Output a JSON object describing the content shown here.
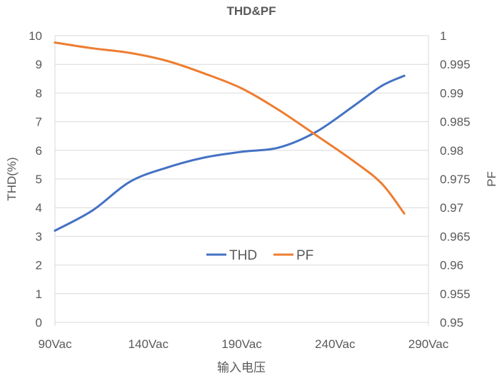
{
  "chart_data": {
    "type": "line",
    "title": "THD&PF",
    "xlabel": "输入电压",
    "ylabel_left": "THD(%)",
    "ylabel_right": "PF",
    "x_tick_labels": [
      "90Vac",
      "140Vac",
      "190Vac",
      "240Vac",
      "290Vac"
    ],
    "xlim": [
      90,
      290
    ],
    "ylim_left": [
      0,
      10
    ],
    "ylim_right": [
      0.95,
      1
    ],
    "y_ticks_left": [
      "0",
      "1",
      "2",
      "3",
      "4",
      "5",
      "6",
      "7",
      "8",
      "9",
      "10"
    ],
    "y_ticks_right": [
      "0.95",
      "0.955",
      "0.96",
      "0.965",
      "0.97",
      "0.975",
      "0.98",
      "0.985",
      "0.99",
      "0.995",
      "1"
    ],
    "grid": true,
    "legend_position": "center",
    "x": [
      90,
      110,
      130,
      150,
      170,
      190,
      210,
      230,
      250,
      265,
      277
    ],
    "series": [
      {
        "name": "THD",
        "axis": "left",
        "color": "#4472C4",
        "values": [
          3.2,
          3.9,
          4.9,
          5.4,
          5.75,
          5.95,
          6.1,
          6.65,
          7.55,
          8.25,
          8.6
        ]
      },
      {
        "name": "PF",
        "axis": "right",
        "color": "#ED7D31",
        "values": [
          0.9988,
          0.9978,
          0.997,
          0.9956,
          0.9934,
          0.9908,
          0.987,
          0.9826,
          0.9781,
          0.9742,
          0.969
        ]
      }
    ]
  }
}
